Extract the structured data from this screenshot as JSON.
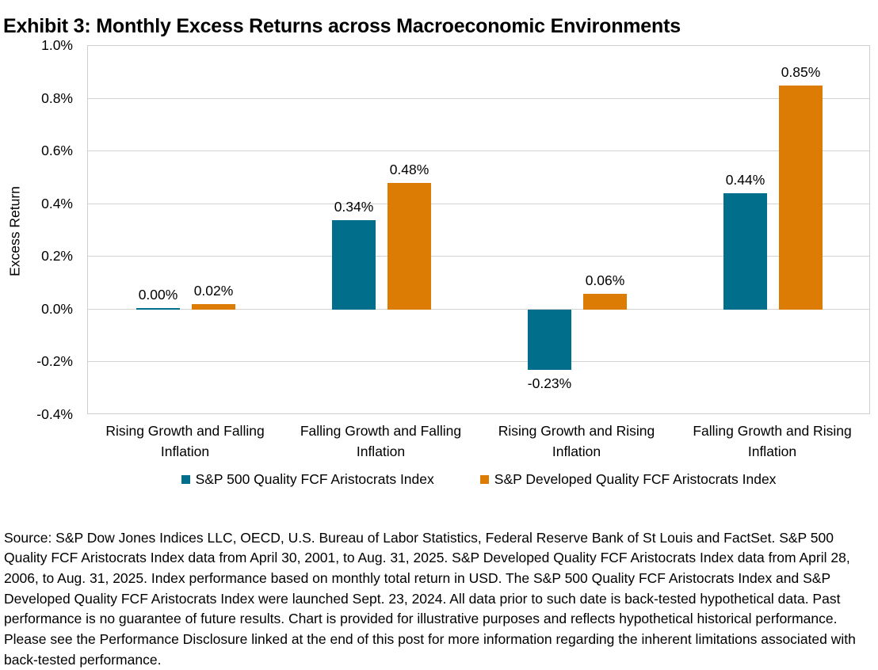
{
  "title": "Exhibit 3: Monthly Excess Returns across Macroeconomic Environments",
  "chart_data": {
    "type": "bar",
    "title": "Exhibit 3: Monthly Excess Returns across Macroeconomic Environments",
    "xlabel": "",
    "ylabel": "Excess Return",
    "ylim": [
      -0.4,
      1.0
    ],
    "ytick_step": 0.2,
    "yticks": [
      "1.0%",
      "0.8%",
      "0.6%",
      "0.4%",
      "0.2%",
      "0.0%",
      "-0.2%",
      "-0.4%"
    ],
    "grid": true,
    "legend_position": "bottom",
    "categories": [
      "Rising Growth and Falling Inflation",
      "Falling Growth and Falling Inflation",
      "Rising Growth and Rising Inflation",
      "Falling Growth and Rising Inflation"
    ],
    "series": [
      {
        "name": "S&P 500 Quality FCF Aristocrats Index",
        "color": "#016E8C",
        "values": [
          0.0,
          0.34,
          -0.23,
          0.44
        ],
        "data_labels": [
          "0.00%",
          "0.34%",
          "-0.23%",
          "0.44%"
        ]
      },
      {
        "name": "S&P Developed Quality FCF Aristocrats Index",
        "color": "#DC7C04",
        "values": [
          0.02,
          0.48,
          0.06,
          0.85
        ],
        "data_labels": [
          "0.02%",
          "0.48%",
          "0.06%",
          "0.85%"
        ]
      }
    ]
  },
  "colors": {
    "series1": "#016E8C",
    "series2": "#DC7C04",
    "gridline": "#d2d2d2",
    "text": "#000000"
  },
  "footnote": "Source: S&P Dow Jones Indices LLC, OECD, U.S. Bureau of Labor Statistics, Federal Reserve Bank of St Louis and FactSet. S&P 500 Quality FCF Aristocrats Index data from April 30, 2001, to Aug. 31, 2025. S&P Developed Quality FCF Aristocrats Index data from April 28, 2006, to Aug. 31, 2025. Index performance based on monthly total return in USD. The S&P 500 Quality FCF Aristocrats Index and S&P Developed Quality FCF Aristocrats Index were launched Sept. 23, 2024. All data prior to such date is back-tested hypothetical data. Past performance is no guarantee of future results. Chart is provided for illustrative purposes and reflects hypothetical historical performance. Please see the Performance Disclosure linked at the end of this post for more information regarding the inherent limitations associated with back-tested performance."
}
